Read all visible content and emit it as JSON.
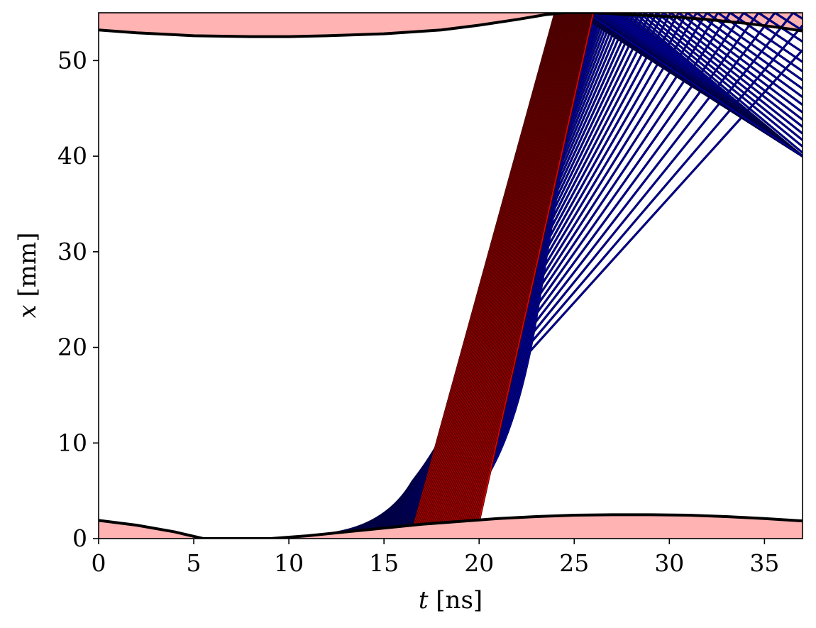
{
  "chart_data": {
    "type": "line",
    "xlabel_var": "t",
    "xlabel_unit": "[ns]",
    "ylabel_var": "x",
    "ylabel_unit": "[mm]",
    "xlim": [
      0,
      37
    ],
    "ylim": [
      0,
      55
    ],
    "xticks": [
      0,
      5,
      10,
      15,
      20,
      25,
      30,
      35
    ],
    "yticks": [
      0,
      10,
      20,
      30,
      40,
      50
    ],
    "grid": false,
    "colors": {
      "wall_fill": "#ffb3b3",
      "boundary": "#000000",
      "blue_rays": "#0000aa",
      "red_rays": "#dd0000"
    },
    "series": [
      {
        "role": "upper-boundary",
        "x": [
          0,
          2,
          5,
          8,
          10,
          12,
          15,
          18,
          20,
          22,
          23.5,
          24.5,
          26,
          28,
          30,
          32,
          34,
          36,
          37
        ],
        "y": [
          53.2,
          52.9,
          52.6,
          52.5,
          52.5,
          52.6,
          52.8,
          53.2,
          53.7,
          54.3,
          54.8,
          55,
          55,
          54.8,
          54.6,
          54.3,
          53.9,
          53.4,
          53.1
        ]
      },
      {
        "role": "lower-boundary",
        "x": [
          0,
          2,
          4,
          5.5,
          7,
          9,
          11,
          13,
          15,
          17,
          19,
          21,
          23,
          25,
          27,
          29,
          31,
          33,
          35,
          37
        ],
        "y": [
          1.9,
          1.4,
          0.7,
          0,
          0,
          0,
          0.3,
          0.7,
          1.1,
          1.5,
          1.8,
          2.1,
          2.3,
          2.45,
          2.5,
          2.5,
          2.45,
          2.3,
          2.1,
          1.85
        ]
      }
    ],
    "ray_bundles": [
      {
        "name": "blue-fan",
        "count": 80,
        "start_t": [
          11.6,
          17.0
        ],
        "start_x": [
          0.3,
          1.5
        ],
        "caustic_point": [
          22,
          24
        ],
        "upper_hits": [
          [
            26,
            55
          ],
          [
            24.3,
            55
          ],
          [
            33.5,
            55
          ],
          [
            36.5,
            53.5
          ],
          [
            37,
            41
          ]
        ]
      },
      {
        "name": "red-band",
        "count": 60,
        "start_t": [
          16.6,
          20.0
        ],
        "start_x": [
          1.5,
          1.9
        ],
        "end_t": [
          24.0,
          26.0
        ],
        "end_x": 55
      }
    ]
  }
}
